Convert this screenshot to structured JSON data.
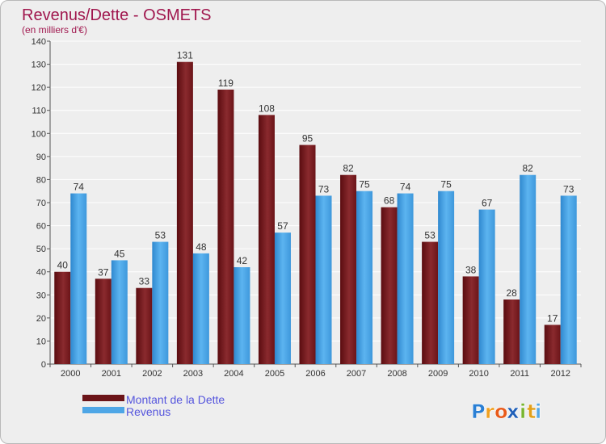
{
  "chart_data": {
    "type": "bar",
    "title": "Revenus/Dette - OSMETS",
    "subtitle": "(en milliers d'€)",
    "categories": [
      "2000",
      "2001",
      "2002",
      "2003",
      "2004",
      "2005",
      "2006",
      "2007",
      "2008",
      "2009",
      "2010",
      "2011",
      "2012"
    ],
    "series": [
      {
        "name": "Montant de la Dette",
        "color": "#6b1418",
        "values": [
          40,
          37,
          33,
          131,
          119,
          108,
          95,
          82,
          68,
          53,
          38,
          28,
          17
        ]
      },
      {
        "name": "Revenus",
        "color": "#4ea6e6",
        "values": [
          74,
          45,
          53,
          48,
          42,
          57,
          73,
          75,
          74,
          75,
          67,
          82,
          73
        ]
      }
    ],
    "ylim": [
      0,
      140
    ],
    "yticks": [
      0,
      10,
      20,
      30,
      40,
      50,
      60,
      70,
      80,
      90,
      100,
      110,
      120,
      130,
      140
    ],
    "grid": true,
    "legend": "bottom-left"
  },
  "logo": {
    "letters": [
      "P",
      "r",
      "o",
      "x",
      "i",
      "t",
      "i"
    ],
    "colors": [
      "#2a7fd4",
      "#f0a020",
      "#e85a1a",
      "#1f5fb8",
      "#79b530",
      "#e2a01a",
      "#54a8e6"
    ]
  }
}
